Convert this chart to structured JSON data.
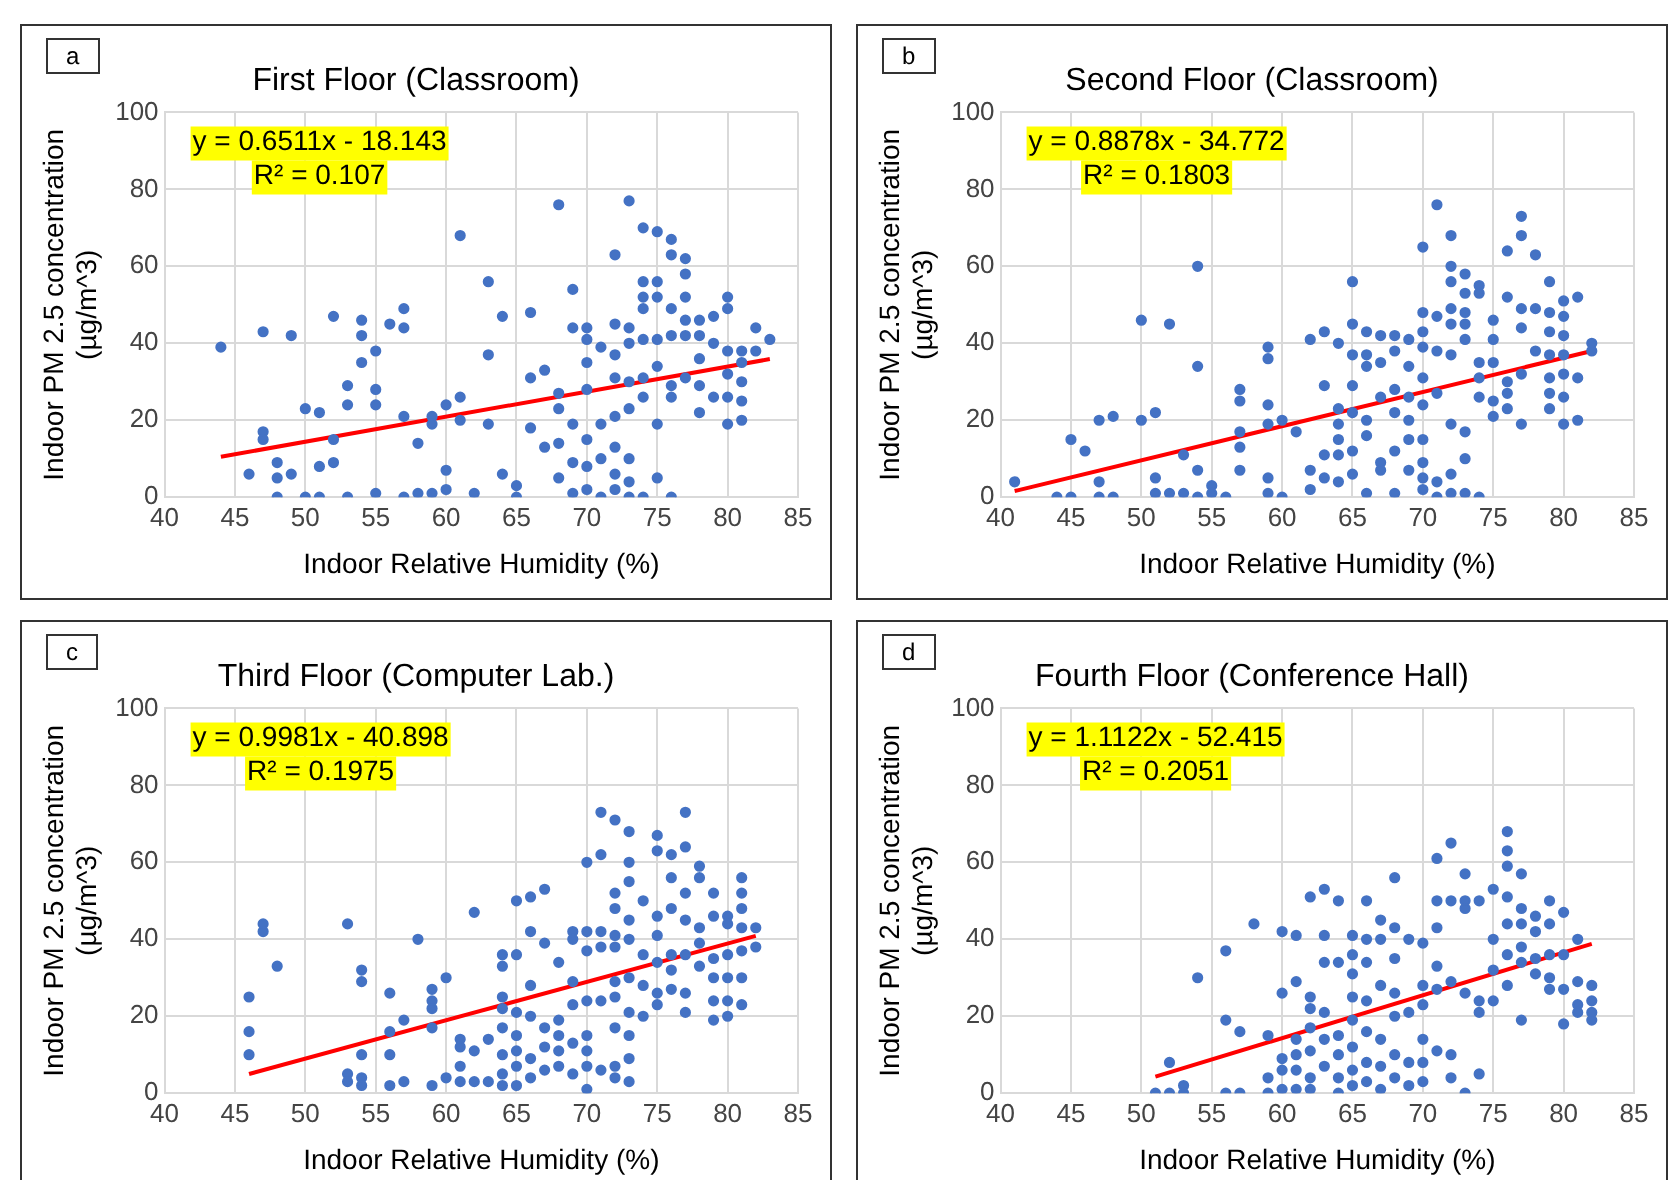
{
  "chart_data": [
    {
      "type": "scatter",
      "title": "First Floor (Classroom)",
      "xlabel": "Indoor Relative Humidity (%)",
      "ylabel": "Indoor PM 2.5 concentration (µg/m^3)",
      "xlim": [
        40,
        85
      ],
      "ylim": [
        0,
        100
      ],
      "xticks": [
        40,
        45,
        50,
        55,
        60,
        65,
        70,
        75,
        80,
        85
      ],
      "yticks": [
        0,
        20,
        40,
        60,
        80,
        100
      ],
      "grid": true,
      "marker": "circle",
      "annotations": [
        "a",
        "y = 0.6511x - 18.143",
        "R² = 0.107"
      ],
      "series": [
        {
          "type": "scatter",
          "color": "#4472c4",
          "x": [
            44,
            46,
            47,
            47,
            47,
            48,
            48,
            48,
            49,
            49,
            50,
            50,
            51,
            51,
            51,
            52,
            52,
            52,
            53,
            53,
            53,
            54,
            54,
            54,
            55,
            55,
            55,
            55,
            56,
            57,
            57,
            57,
            57,
            58,
            58,
            59,
            59,
            59,
            60,
            60,
            60,
            61,
            61,
            61,
            62,
            63,
            63,
            63,
            64,
            64,
            65,
            65,
            66,
            66,
            66,
            67,
            67,
            68,
            68,
            68,
            68,
            68,
            69,
            69,
            69,
            69,
            69,
            70,
            70,
            70,
            70,
            70,
            70,
            70,
            71,
            71,
            71,
            71,
            72,
            72,
            72,
            72,
            72,
            72,
            72,
            72,
            73,
            73,
            73,
            73,
            73,
            73,
            73,
            73,
            74,
            74,
            74,
            74,
            74,
            74,
            74,
            74,
            75,
            75,
            75,
            75,
            75,
            75,
            75,
            76,
            76,
            76,
            76,
            76,
            76,
            76,
            77,
            77,
            77,
            77,
            77,
            77,
            78,
            78,
            78,
            78,
            78,
            79,
            79,
            79,
            80,
            80,
            80,
            80,
            80,
            80,
            81,
            81,
            81,
            81,
            81,
            82,
            82,
            83
          ],
          "values": [
            39,
            6,
            43,
            17,
            15,
            9,
            0,
            5,
            42,
            6,
            23,
            0,
            22,
            8,
            0,
            47,
            15,
            9,
            29,
            24,
            0,
            46,
            42,
            35,
            38,
            28,
            24,
            1,
            45,
            49,
            44,
            21,
            0,
            14,
            1,
            21,
            19,
            1,
            24,
            7,
            2,
            68,
            26,
            20,
            1,
            56,
            37,
            19,
            47,
            6,
            3,
            0,
            48,
            31,
            18,
            33,
            13,
            76,
            27,
            23,
            14,
            5,
            54,
            44,
            19,
            9,
            1,
            44,
            41,
            35,
            28,
            15,
            8,
            2,
            39,
            19,
            10,
            0,
            63,
            45,
            37,
            31,
            21,
            13,
            6,
            2,
            77,
            44,
            40,
            30,
            23,
            10,
            4,
            0,
            70,
            56,
            52,
            49,
            41,
            31,
            26,
            0,
            69,
            56,
            52,
            41,
            34,
            19,
            5,
            67,
            63,
            49,
            42,
            29,
            26,
            0,
            62,
            58,
            52,
            46,
            42,
            31,
            46,
            42,
            36,
            29,
            22,
            47,
            40,
            26,
            52,
            49,
            38,
            32,
            26,
            19,
            38,
            35,
            30,
            25,
            20,
            44,
            38,
            41
          ]
        },
        {
          "type": "line",
          "color": "#ff0000",
          "marker": "none",
          "x": [
            44,
            83
          ],
          "values": [
            10.5,
            35.9
          ]
        }
      ]
    },
    {
      "type": "scatter",
      "title": "Second Floor (Classroom)",
      "xlabel": "Indoor Relative Humidity (%)",
      "ylabel": "Indoor PM 2.5 concentration (µg/m^3)",
      "xlim": [
        40,
        85
      ],
      "ylim": [
        0,
        100
      ],
      "xticks": [
        40,
        45,
        50,
        55,
        60,
        65,
        70,
        75,
        80,
        85
      ],
      "yticks": [
        0,
        20,
        40,
        60,
        80,
        100
      ],
      "grid": true,
      "marker": "circle",
      "annotations": [
        "b",
        "y = 0.8878x - 34.772",
        "R² = 0.1803"
      ],
      "series": [
        {
          "type": "scatter",
          "color": "#4472c4",
          "x": [
            41,
            44,
            45,
            45,
            46,
            47,
            47,
            47,
            48,
            48,
            50,
            50,
            51,
            51,
            51,
            52,
            52,
            53,
            53,
            54,
            54,
            54,
            54,
            55,
            55,
            56,
            57,
            57,
            57,
            57,
            57,
            59,
            59,
            59,
            59,
            59,
            59,
            60,
            60,
            61,
            62,
            62,
            62,
            63,
            63,
            63,
            63,
            64,
            64,
            64,
            64,
            64,
            64,
            65,
            65,
            65,
            65,
            65,
            65,
            65,
            66,
            66,
            66,
            66,
            66,
            66,
            67,
            67,
            67,
            67,
            67,
            68,
            68,
            68,
            68,
            68,
            68,
            69,
            69,
            69,
            69,
            69,
            69,
            70,
            70,
            70,
            70,
            70,
            70,
            70,
            70,
            70,
            70,
            71,
            71,
            71,
            71,
            71,
            71,
            72,
            72,
            72,
            72,
            72,
            72,
            72,
            72,
            72,
            73,
            73,
            73,
            73,
            73,
            73,
            73,
            73,
            74,
            74,
            74,
            74,
            74,
            74,
            75,
            75,
            75,
            75,
            75,
            76,
            76,
            76,
            76,
            76,
            77,
            77,
            77,
            77,
            77,
            77,
            78,
            78,
            78,
            79,
            79,
            79,
            79,
            79,
            79,
            79,
            80,
            80,
            80,
            80,
            80,
            80,
            80,
            81,
            81,
            81,
            82,
            82
          ],
          "values": [
            4,
            0,
            15,
            0,
            12,
            20,
            4,
            0,
            21,
            0,
            46,
            20,
            22,
            5,
            1,
            45,
            1,
            11,
            1,
            60,
            34,
            7,
            0,
            3,
            1,
            0,
            28,
            25,
            17,
            13,
            7,
            39,
            36,
            24,
            19,
            5,
            1,
            20,
            0,
            17,
            41,
            7,
            2,
            43,
            29,
            11,
            5,
            40,
            23,
            19,
            15,
            11,
            4,
            56,
            45,
            37,
            29,
            22,
            12,
            6,
            43,
            37,
            34,
            20,
            16,
            1,
            42,
            35,
            26,
            9,
            7,
            42,
            38,
            28,
            22,
            12,
            1,
            41,
            34,
            26,
            20,
            15,
            7,
            65,
            48,
            43,
            39,
            31,
            24,
            15,
            9,
            5,
            2,
            76,
            47,
            38,
            27,
            4,
            0,
            68,
            60,
            56,
            49,
            45,
            37,
            19,
            6,
            1,
            58,
            53,
            48,
            45,
            41,
            17,
            10,
            1,
            55,
            53,
            35,
            31,
            26,
            0,
            46,
            41,
            35,
            25,
            21,
            64,
            52,
            30,
            27,
            23,
            73,
            68,
            49,
            44,
            32,
            19,
            63,
            49,
            38,
            56,
            48,
            43,
            37,
            31,
            27,
            23,
            51,
            47,
            42,
            37,
            32,
            26,
            19,
            52,
            31,
            20,
            40,
            38
          ]
        },
        {
          "type": "line",
          "color": "#ff0000",
          "marker": "none",
          "x": [
            41,
            82
          ],
          "values": [
            1.6,
            38.0
          ]
        }
      ]
    },
    {
      "type": "scatter",
      "title": "Third Floor (Computer Lab.)",
      "xlabel": "Indoor Relative Humidity (%)",
      "ylabel": "Indoor PM 2.5 concentration (µg/m^3)",
      "xlim": [
        40,
        85
      ],
      "ylim": [
        0,
        100
      ],
      "xticks": [
        40,
        45,
        50,
        55,
        60,
        65,
        70,
        75,
        80,
        85
      ],
      "yticks": [
        0,
        20,
        40,
        60,
        80,
        100
      ],
      "grid": true,
      "marker": "circle",
      "annotations": [
        "c",
        "y = 0.9981x - 40.898",
        "R² = 0.1975"
      ],
      "series": [
        {
          "type": "scatter",
          "color": "#4472c4",
          "x": [
            46,
            46,
            46,
            47,
            47,
            48,
            53,
            53,
            53,
            54,
            54,
            54,
            54,
            54,
            56,
            56,
            56,
            56,
            57,
            57,
            58,
            59,
            59,
            59,
            59,
            59,
            60,
            60,
            61,
            61,
            61,
            61,
            62,
            62,
            62,
            63,
            63,
            64,
            64,
            64,
            64,
            64,
            64,
            64,
            64,
            65,
            65,
            65,
            65,
            65,
            65,
            65,
            66,
            66,
            66,
            66,
            66,
            66,
            67,
            67,
            67,
            67,
            67,
            68,
            68,
            68,
            68,
            68,
            69,
            69,
            69,
            69,
            69,
            69,
            70,
            70,
            70,
            70,
            70,
            70,
            70,
            70,
            71,
            71,
            71,
            71,
            71,
            71,
            72,
            72,
            72,
            72,
            72,
            72,
            72,
            72,
            72,
            72,
            73,
            73,
            73,
            73,
            73,
            73,
            73,
            73,
            73,
            73,
            74,
            74,
            74,
            74,
            75,
            75,
            75,
            75,
            75,
            75,
            75,
            76,
            76,
            76,
            76,
            76,
            76,
            77,
            77,
            77,
            77,
            77,
            77,
            77,
            78,
            78,
            78,
            78,
            78,
            79,
            79,
            79,
            79,
            79,
            79,
            80,
            80,
            80,
            80,
            80,
            80,
            81,
            81,
            81,
            81,
            81,
            81,
            81,
            82,
            82
          ],
          "values": [
            25,
            16,
            10,
            44,
            42,
            33,
            44,
            5,
            3,
            32,
            29,
            10,
            4,
            2,
            26,
            16,
            10,
            2,
            19,
            3,
            40,
            27,
            24,
            22,
            17,
            2,
            30,
            4,
            14,
            12,
            7,
            3,
            47,
            11,
            3,
            14,
            3,
            36,
            33,
            25,
            22,
            17,
            10,
            5,
            2,
            50,
            36,
            21,
            15,
            11,
            7,
            2,
            51,
            42,
            28,
            20,
            9,
            4,
            53,
            39,
            17,
            12,
            6,
            34,
            19,
            15,
            11,
            7,
            42,
            40,
            29,
            23,
            13,
            5,
            60,
            42,
            37,
            24,
            15,
            11,
            7,
            1,
            73,
            62,
            42,
            38,
            24,
            6,
            71,
            52,
            48,
            41,
            38,
            29,
            25,
            17,
            7,
            4,
            68,
            60,
            55,
            45,
            40,
            30,
            21,
            15,
            9,
            3,
            50,
            36,
            28,
            20,
            67,
            63,
            46,
            41,
            34,
            26,
            23,
            62,
            56,
            48,
            36,
            32,
            27,
            73,
            64,
            52,
            45,
            36,
            26,
            21,
            59,
            56,
            43,
            39,
            33,
            52,
            46,
            35,
            30,
            24,
            19,
            46,
            44,
            36,
            30,
            24,
            20,
            56,
            52,
            48,
            43,
            37,
            30,
            23,
            43,
            38
          ]
        },
        {
          "type": "line",
          "color": "#ff0000",
          "marker": "none",
          "x": [
            46,
            82
          ],
          "values": [
            5.0,
            40.9
          ]
        }
      ]
    },
    {
      "type": "scatter",
      "title": "Fourth Floor (Conference Hall)",
      "xlabel": "Indoor Relative Humidity (%)",
      "ylabel": "Indoor PM 2.5 concentration (µg/m^3)",
      "xlim": [
        40,
        85
      ],
      "ylim": [
        0,
        100
      ],
      "xticks": [
        40,
        45,
        50,
        55,
        60,
        65,
        70,
        75,
        80,
        85
      ],
      "yticks": [
        0,
        20,
        40,
        60,
        80,
        100
      ],
      "grid": true,
      "marker": "circle",
      "annotations": [
        "d",
        "y = 1.1122x - 52.415",
        "R² = 0.2051"
      ],
      "series": [
        {
          "type": "scatter",
          "color": "#4472c4",
          "x": [
            51,
            52,
            52,
            53,
            53,
            54,
            56,
            56,
            56,
            57,
            57,
            58,
            59,
            59,
            59,
            60,
            60,
            60,
            60,
            60,
            61,
            61,
            61,
            61,
            61,
            61,
            62,
            62,
            62,
            62,
            62,
            62,
            62,
            63,
            63,
            63,
            63,
            63,
            63,
            64,
            64,
            64,
            64,
            64,
            64,
            65,
            65,
            65,
            65,
            65,
            65,
            65,
            65,
            66,
            66,
            66,
            66,
            66,
            66,
            66,
            67,
            67,
            67,
            67,
            67,
            67,
            68,
            68,
            68,
            68,
            68,
            68,
            68,
            69,
            69,
            69,
            69,
            70,
            70,
            70,
            70,
            70,
            70,
            71,
            71,
            71,
            71,
            71,
            71,
            72,
            72,
            72,
            72,
            72,
            73,
            73,
            73,
            73,
            73,
            74,
            74,
            74,
            74,
            75,
            75,
            75,
            75,
            76,
            76,
            76,
            76,
            76,
            76,
            76,
            77,
            77,
            77,
            77,
            77,
            77,
            78,
            78,
            78,
            78,
            79,
            79,
            79,
            79,
            79,
            80,
            80,
            80,
            80,
            81,
            81,
            81,
            81,
            82,
            82,
            82,
            82
          ],
          "values": [
            0,
            8,
            0,
            2,
            0,
            30,
            37,
            19,
            0,
            16,
            0,
            44,
            15,
            4,
            0,
            42,
            26,
            9,
            6,
            1,
            41,
            29,
            14,
            10,
            6,
            1,
            51,
            25,
            22,
            17,
            11,
            4,
            1,
            53,
            41,
            34,
            21,
            14,
            7,
            50,
            34,
            15,
            10,
            4,
            0,
            41,
            36,
            31,
            25,
            19,
            12,
            6,
            2,
            50,
            40,
            34,
            24,
            16,
            8,
            3,
            45,
            40,
            28,
            14,
            7,
            1,
            56,
            43,
            35,
            26,
            20,
            10,
            4,
            40,
            21,
            8,
            2,
            39,
            28,
            23,
            14,
            8,
            3,
            61,
            50,
            43,
            33,
            27,
            11,
            65,
            50,
            29,
            10,
            4,
            57,
            50,
            48,
            26,
            0,
            50,
            24,
            21,
            5,
            53,
            40,
            32,
            24,
            68,
            63,
            59,
            51,
            44,
            36,
            28,
            57,
            48,
            44,
            38,
            34,
            19,
            46,
            42,
            35,
            31,
            50,
            44,
            36,
            30,
            27,
            47,
            36,
            27,
            18,
            40,
            29,
            23,
            21,
            28,
            24,
            21,
            19
          ]
        },
        {
          "type": "line",
          "color": "#ff0000",
          "marker": "none",
          "x": [
            51,
            82
          ],
          "values": [
            4.3,
            38.8
          ]
        }
      ]
    }
  ]
}
